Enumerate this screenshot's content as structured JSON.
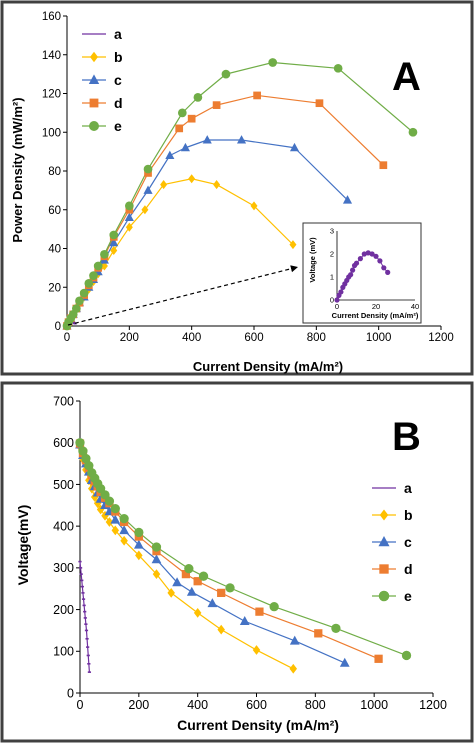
{
  "colors": {
    "a": "#7030A0",
    "b": "#FFC000",
    "c": "#4472C4",
    "d": "#ED7D31",
    "e": "#70AD47",
    "frame": "#404040"
  },
  "chart_data": [
    {
      "panel_label": "A",
      "type": "line",
      "xlabel": "Current Density (mA/m²)",
      "ylabel": "Power Density (mW/m²)",
      "xlim": [
        0,
        1200
      ],
      "ylim": [
        0,
        160
      ],
      "xticks": [
        "0",
        "200",
        "400",
        "600",
        "800",
        "1000",
        "1200"
      ],
      "yticks": [
        "0",
        "20",
        "40",
        "60",
        "80",
        "100",
        "120",
        "140",
        "160"
      ],
      "legend_position": "top-left",
      "grid": false,
      "series": [
        {
          "name": "a",
          "marker": "line",
          "x": [
            0,
            1,
            2,
            3,
            4,
            5,
            6,
            7,
            8,
            9,
            10,
            12,
            14,
            16,
            18,
            20,
            22,
            24,
            26
          ],
          "y": [
            0,
            0.2,
            0.35,
            0.55,
            0.7,
            0.85,
            1.0,
            1.1,
            1.3,
            1.5,
            1.6,
            1.8,
            2.0,
            2.05,
            2.0,
            1.9,
            1.7,
            1.4,
            1.2
          ]
        },
        {
          "name": "b",
          "marker": "diamond",
          "x": [
            0,
            5,
            12,
            20,
            30,
            40,
            55,
            70,
            85,
            100,
            120,
            150,
            200,
            250,
            310,
            400,
            480,
            600,
            725
          ],
          "y": [
            0,
            2,
            4,
            6,
            9,
            12,
            15,
            19,
            23,
            27,
            31,
            39,
            51,
            60,
            73,
            76,
            73,
            62,
            42
          ]
        },
        {
          "name": "c",
          "marker": "triangle",
          "x": [
            0,
            5,
            12,
            20,
            30,
            40,
            55,
            70,
            85,
            100,
            120,
            150,
            200,
            260,
            330,
            380,
            450,
            560,
            730,
            900
          ],
          "y": [
            0,
            2,
            4,
            6,
            9,
            12,
            15,
            20,
            24,
            28,
            34,
            43,
            56,
            70,
            88,
            92,
            96,
            96,
            92,
            65
          ]
        },
        {
          "name": "d",
          "marker": "square",
          "x": [
            0,
            5,
            12,
            20,
            30,
            40,
            55,
            70,
            85,
            100,
            120,
            150,
            200,
            260,
            360,
            400,
            480,
            610,
            810,
            1015
          ],
          "y": [
            0,
            2,
            4,
            6,
            9,
            12,
            16,
            21,
            25,
            30,
            36,
            46,
            60,
            79,
            102,
            107,
            114,
            119,
            115,
            83
          ]
        },
        {
          "name": "e",
          "marker": "circle",
          "x": [
            0,
            5,
            12,
            20,
            30,
            40,
            55,
            70,
            85,
            100,
            120,
            150,
            200,
            260,
            370,
            420,
            510,
            660,
            870,
            1110
          ],
          "y": [
            0,
            2,
            4,
            6,
            9,
            13,
            17,
            22,
            26,
            31,
            37,
            47,
            62,
            81,
            110,
            118,
            130,
            136,
            133,
            100
          ]
        }
      ],
      "inset": {
        "xlabel": "Current Density (mA/m²)",
        "ylabel": "Voltage (mV)",
        "xlim": [
          0,
          40
        ],
        "ylim": [
          0,
          3
        ],
        "xticks": [
          "0",
          "20",
          "40"
        ],
        "yticks": [
          "0",
          "1",
          "2",
          "3"
        ],
        "series": "a"
      }
    },
    {
      "panel_label": "B",
      "type": "line",
      "xlabel": "Current Density (mA/m²)",
      "ylabel": "Voltage(mV)",
      "xlim": [
        0,
        1200
      ],
      "ylim": [
        0,
        700
      ],
      "xticks": [
        "0",
        "200",
        "400",
        "600",
        "800",
        "1000",
        "1200"
      ],
      "yticks": [
        "0",
        "100",
        "200",
        "300",
        "400",
        "500",
        "600",
        "700"
      ],
      "legend_position": "right",
      "grid": false,
      "series": [
        {
          "name": "a",
          "marker": "line",
          "x": [
            0,
            2,
            4,
            6,
            8,
            10,
            12,
            14,
            16,
            18,
            20,
            22,
            24,
            26,
            28,
            30,
            32
          ],
          "y": [
            315,
            300,
            285,
            270,
            255,
            240,
            225,
            210,
            195,
            180,
            165,
            150,
            130,
            110,
            90,
            70,
            50
          ]
        },
        {
          "name": "b",
          "marker": "diamond",
          "x": [
            0,
            10,
            20,
            30,
            40,
            50,
            60,
            70,
            85,
            100,
            120,
            150,
            200,
            260,
            310,
            400,
            480,
            600,
            725
          ],
          "y": [
            590,
            560,
            535,
            510,
            490,
            470,
            455,
            440,
            425,
            410,
            390,
            365,
            330,
            285,
            240,
            192,
            152,
            103,
            58
          ]
        },
        {
          "name": "c",
          "marker": "triangle",
          "x": [
            0,
            10,
            20,
            30,
            40,
            50,
            60,
            70,
            85,
            100,
            120,
            150,
            200,
            260,
            330,
            380,
            450,
            560,
            730,
            900
          ],
          "y": [
            595,
            570,
            550,
            530,
            510,
            495,
            480,
            465,
            450,
            435,
            415,
            390,
            355,
            320,
            265,
            242,
            215,
            172,
            125,
            72
          ]
        },
        {
          "name": "d",
          "marker": "square",
          "x": [
            0,
            10,
            20,
            30,
            40,
            50,
            60,
            70,
            85,
            100,
            120,
            150,
            200,
            260,
            360,
            400,
            480,
            610,
            810,
            1015
          ],
          "y": [
            598,
            575,
            558,
            540,
            522,
            508,
            495,
            482,
            468,
            455,
            435,
            410,
            375,
            340,
            285,
            268,
            240,
            195,
            143,
            82
          ]
        },
        {
          "name": "e",
          "marker": "circle",
          "x": [
            0,
            10,
            20,
            30,
            40,
            50,
            60,
            70,
            85,
            100,
            120,
            150,
            200,
            260,
            370,
            420,
            510,
            660,
            870,
            1110
          ],
          "y": [
            600,
            580,
            562,
            545,
            528,
            515,
            502,
            490,
            475,
            460,
            442,
            418,
            385,
            350,
            298,
            280,
            252,
            207,
            155,
            90
          ]
        }
      ]
    }
  ]
}
